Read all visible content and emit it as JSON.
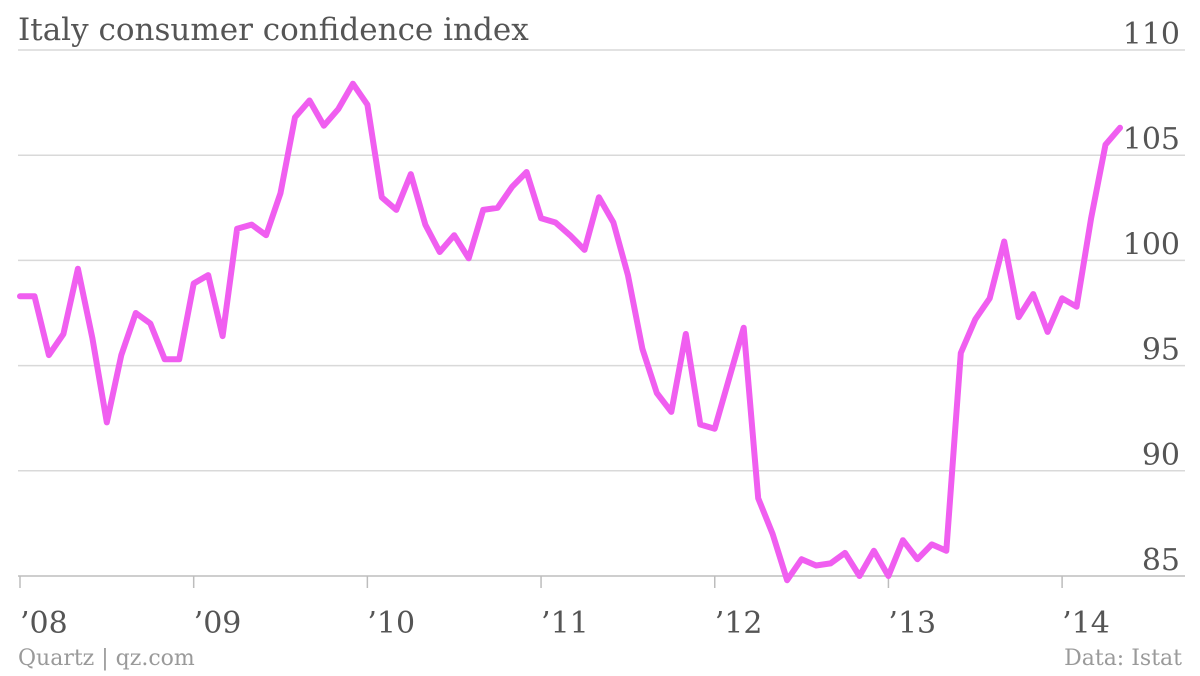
{
  "chart_data": {
    "type": "line",
    "title": "Italy consumer confidence index",
    "xlabel": "",
    "ylabel": "",
    "ylim": [
      84,
      110
    ],
    "yticks": [
      85,
      90,
      95,
      100,
      105,
      110
    ],
    "xtick_labels": [
      "’08",
      "’09",
      "’10",
      "’11",
      "’12",
      "’13",
      "’14"
    ],
    "xtick_years": [
      2008,
      2009,
      2010,
      2011,
      2012,
      2013,
      2014
    ],
    "grid": true,
    "y_axis_position": "right",
    "line_color": "#f05ef0",
    "series": [
      {
        "x": [
          "2008-01",
          "2008-02",
          "2008-03",
          "2008-04",
          "2008-05",
          "2008-06",
          "2008-07",
          "2008-08",
          "2008-09",
          "2008-10",
          "2008-11",
          "2008-12",
          "2009-01",
          "2009-02",
          "2009-03",
          "2009-04",
          "2009-05",
          "2009-06",
          "2009-07",
          "2009-08",
          "2009-09",
          "2009-10",
          "2009-11",
          "2009-12",
          "2010-01",
          "2010-02",
          "2010-03",
          "2010-04",
          "2010-05",
          "2010-06",
          "2010-07",
          "2010-08",
          "2010-09",
          "2010-10",
          "2010-11",
          "2010-12",
          "2011-01",
          "2011-02",
          "2011-03",
          "2011-04",
          "2011-05",
          "2011-06",
          "2011-07",
          "2011-08",
          "2011-09",
          "2011-10",
          "2011-11",
          "2011-12",
          "2012-01",
          "2012-02",
          "2012-03",
          "2012-04",
          "2012-05",
          "2012-06",
          "2012-07",
          "2012-08",
          "2012-09",
          "2012-10",
          "2012-11",
          "2012-12",
          "2013-01",
          "2013-02",
          "2013-03",
          "2013-04",
          "2013-05",
          "2013-06",
          "2013-07",
          "2013-08",
          "2013-09",
          "2013-10",
          "2013-11",
          "2013-12",
          "2014-01",
          "2014-02",
          "2014-03",
          "2014-04",
          "2014-05"
        ],
        "values": [
          98.3,
          98.3,
          95.5,
          96.5,
          99.6,
          96.3,
          92.3,
          95.5,
          97.5,
          97.0,
          95.3,
          95.3,
          98.9,
          99.3,
          96.4,
          101.5,
          101.7,
          101.2,
          103.2,
          106.8,
          107.6,
          106.4,
          107.2,
          108.4,
          107.4,
          103.0,
          102.4,
          104.1,
          101.7,
          100.4,
          101.2,
          100.1,
          102.4,
          102.5,
          103.5,
          104.2,
          102.0,
          101.8,
          101.2,
          100.5,
          103.0,
          101.8,
          99.3,
          95.8,
          93.7,
          92.8,
          96.5,
          92.2,
          92.0,
          94.4,
          96.8,
          88.7,
          87.0,
          84.8,
          85.8,
          85.5,
          85.6,
          86.1,
          85.0,
          86.2,
          85.0,
          86.7,
          85.8,
          86.5,
          86.2,
          95.6,
          97.2,
          98.2,
          100.9,
          97.3,
          98.4,
          96.6,
          98.2,
          97.8,
          102.0,
          105.5,
          106.3
        ]
      }
    ]
  },
  "source_left": "Quartz | qz.com",
  "source_right": "Data: Istat"
}
